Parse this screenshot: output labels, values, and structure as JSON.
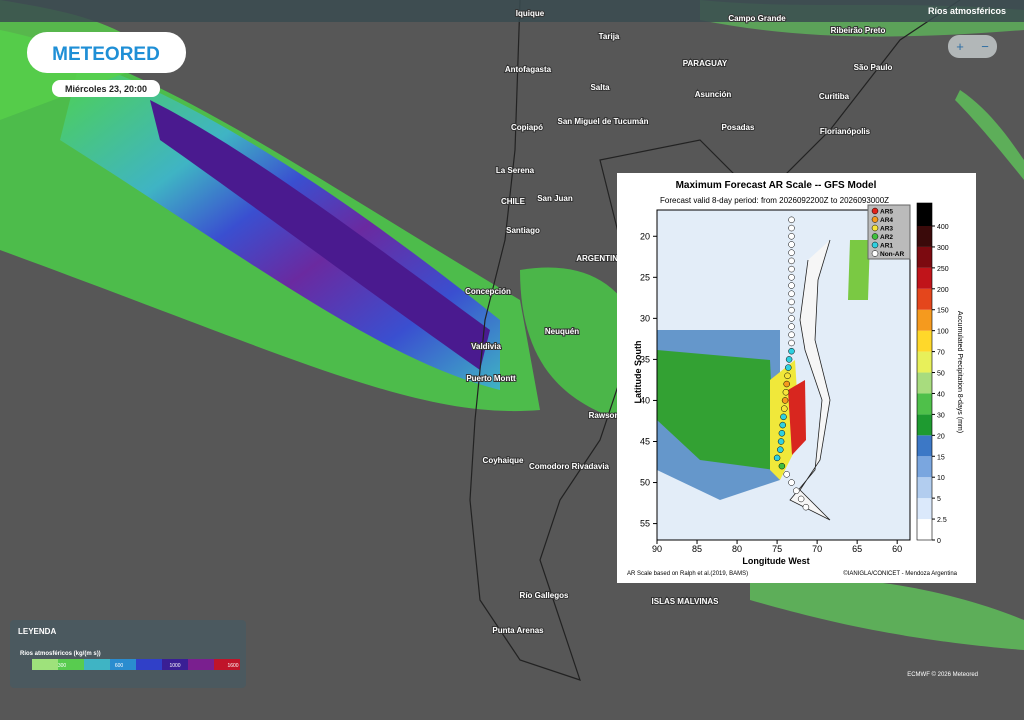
{
  "header": {
    "logo": "METEORED",
    "date": "Miércoles 23, 20:00",
    "layer": "Ríos atmosféricos",
    "zoom_in": "+",
    "zoom_out": "−"
  },
  "map_labels": [
    "Iquique",
    "Tarija",
    "Campo Grande",
    "Ribeirão Preto",
    "Antofagasta",
    "PARAGUAY",
    "São Paulo",
    "Salta",
    "Asunción",
    "Curitiba",
    "Copiapó",
    "San Miguel de Tucumán",
    "Posadas",
    "Florianópolis",
    "La Serena",
    "CHILE",
    "San Juan",
    "Santiago",
    "ARGENTINA",
    "Concepción",
    "Neuquén",
    "Valdivia",
    "Puerto Montt",
    "Rawson",
    "Coyhaique",
    "Comodoro Rivadavia",
    "Río Gallegos",
    "ISLAS MALVINAS",
    "Punta Arenas"
  ],
  "legend": {
    "title": "LEYENDA",
    "label": "Ríos atmosféricos (kg/(m s))",
    "ticks": [
      300,
      600,
      1000,
      1600
    ]
  },
  "inset": {
    "title": "Maximum Forecast AR Scale -- GFS Model",
    "subtitle": "Forecast valid 8-day period: from 2026092200Z to 2026093000Z",
    "xlabel": "Longitude West",
    "ylabel": "Latitude South",
    "xlim": [
      90,
      58.4
    ],
    "ylim": [
      57,
      16.8
    ],
    "xticks": [
      90,
      85,
      80,
      75,
      70,
      65,
      60
    ],
    "yticks": [
      20,
      25,
      30,
      35,
      40,
      45,
      50,
      55
    ],
    "ar_legend": [
      "AR5",
      "AR4",
      "AR3",
      "AR2",
      "AR1",
      "Non-AR"
    ],
    "colorbar_label": "Accumulated Precipitation 8-days (mm)",
    "colorbar_ticks": [
      0,
      2.5,
      5,
      10,
      15,
      20,
      30,
      40,
      50,
      70,
      100,
      150,
      200,
      250,
      300,
      400
    ],
    "note_left": "AR Scale based on Ralph et al.(2019, BAMS)",
    "note_right": "©IANIGLA/CONICET - Mendoza Argentina"
  },
  "credits": "ECMWF © 2026 Meteored"
}
